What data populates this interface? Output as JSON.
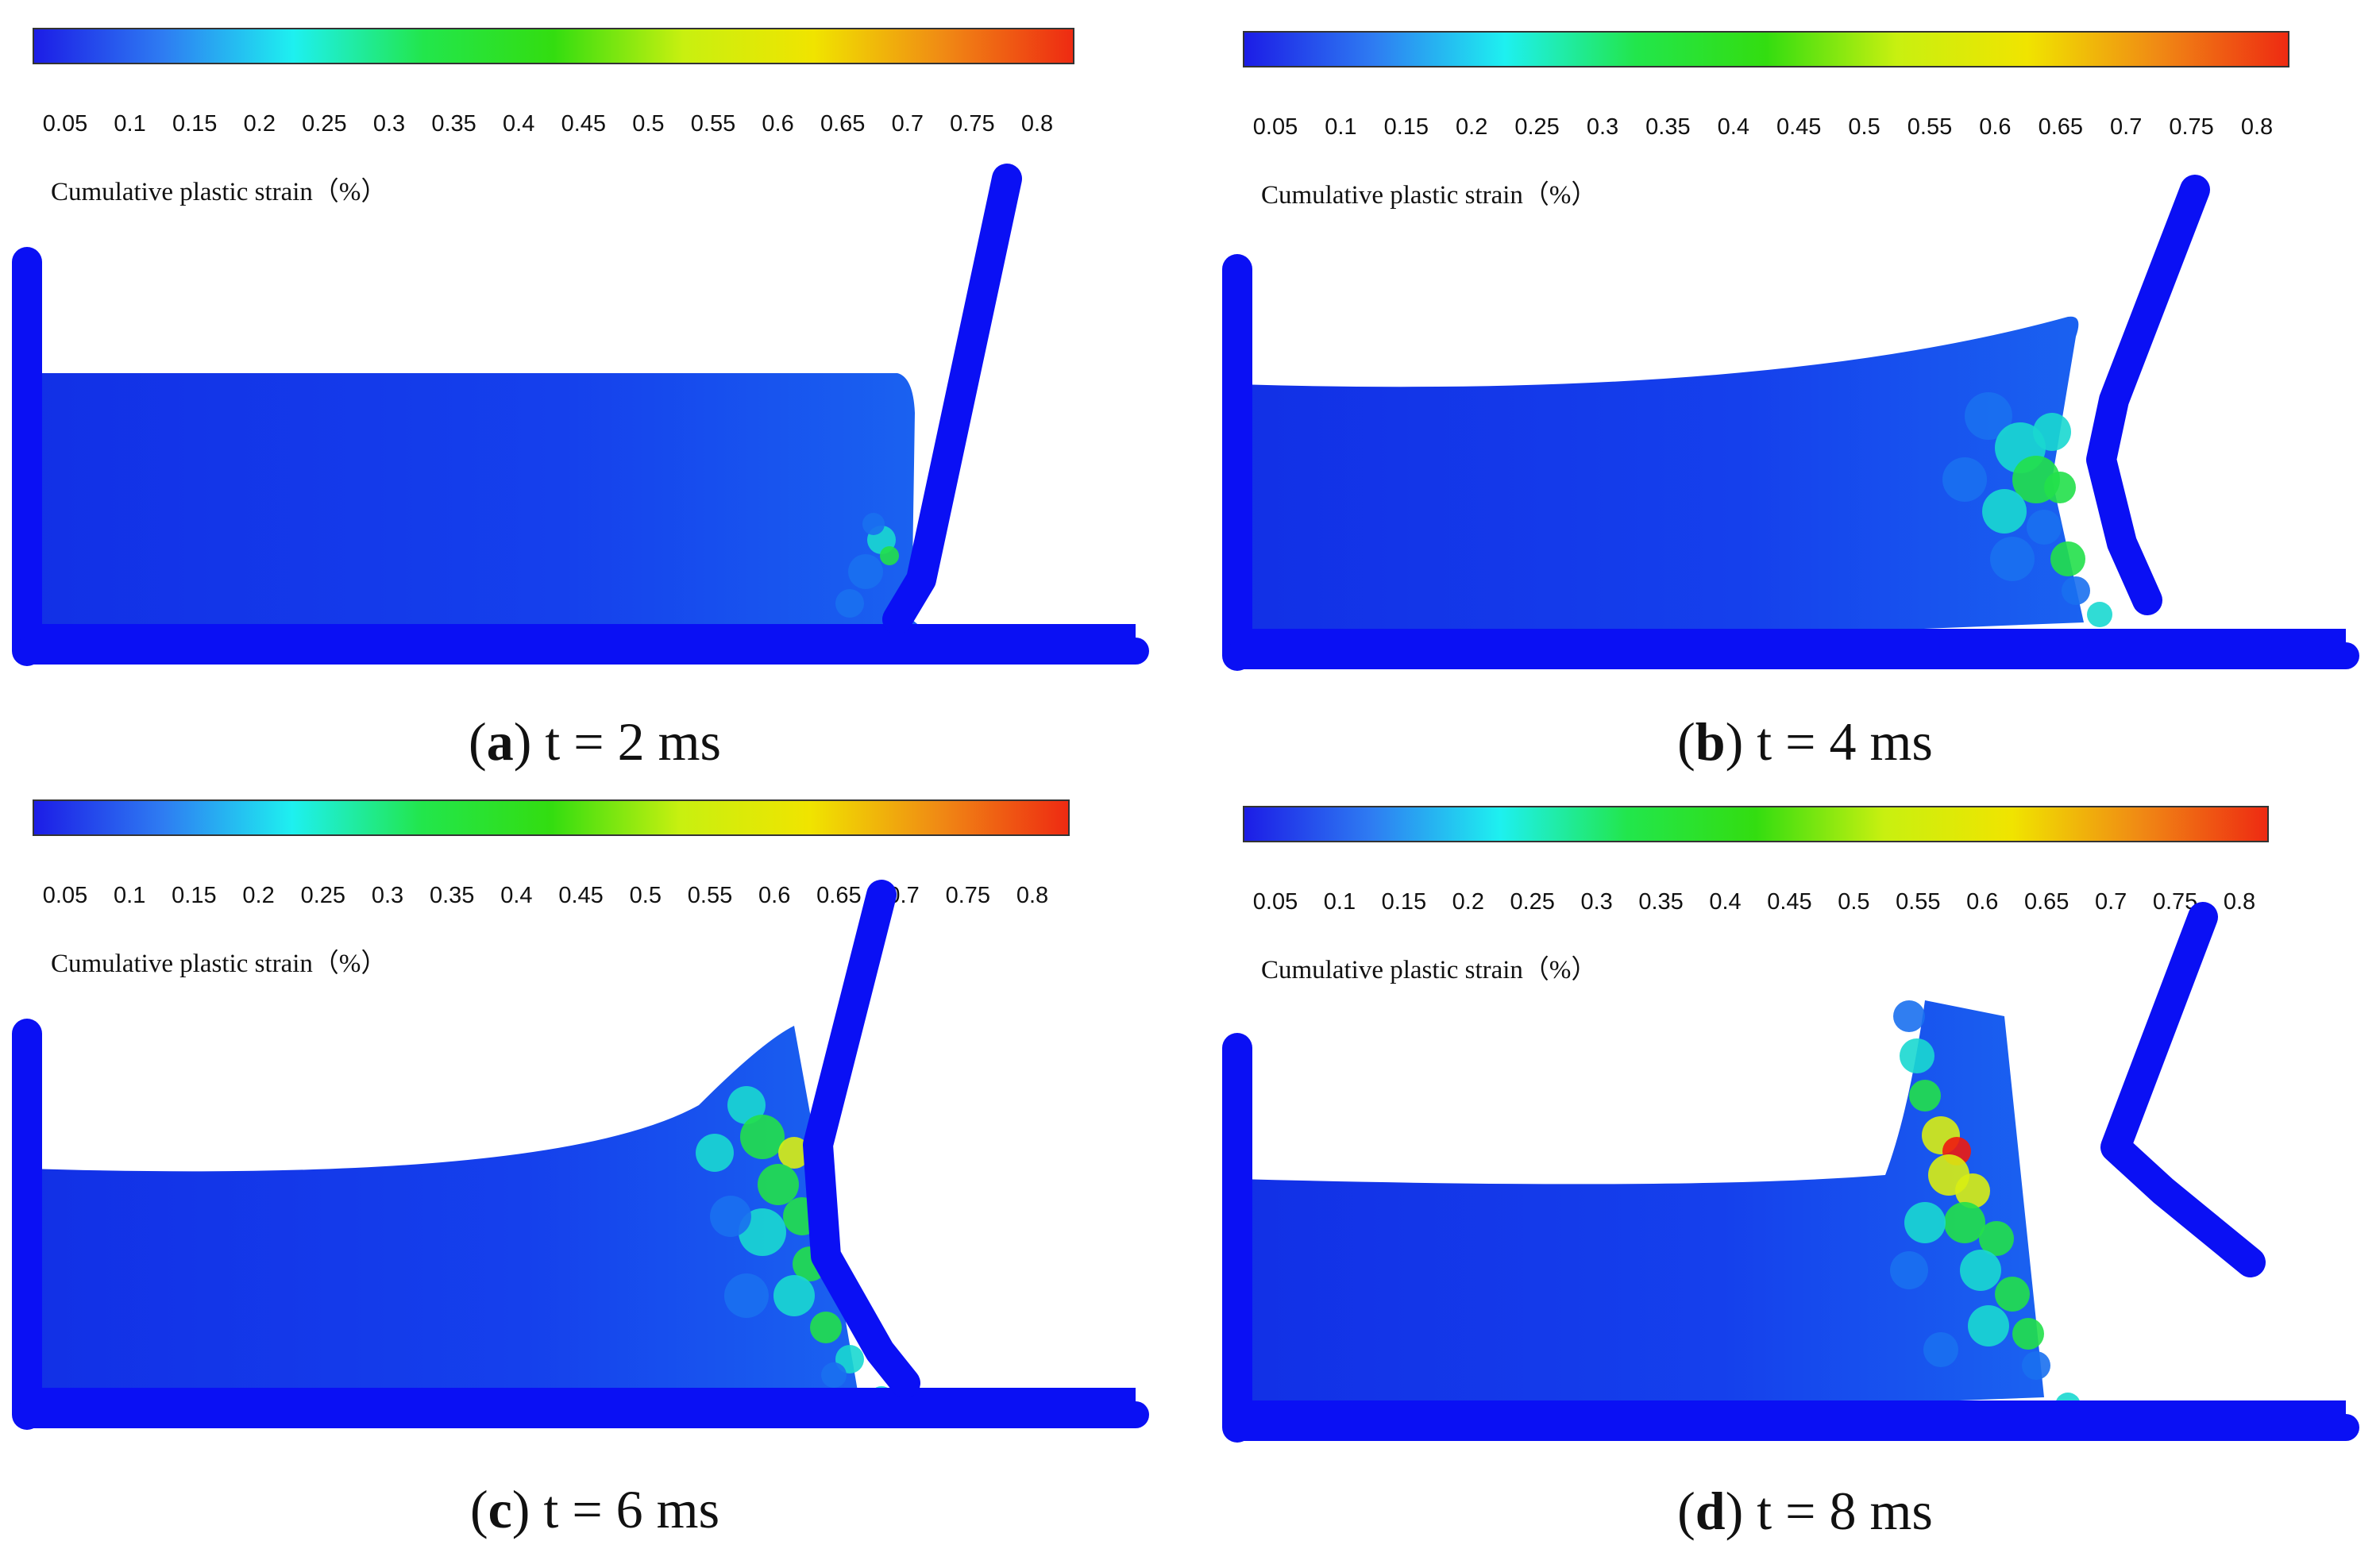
{
  "colorbar": {
    "ticks": [
      "0.05",
      "0.1",
      "0.15",
      "0.2",
      "0.25",
      "0.3",
      "0.35",
      "0.4",
      "0.45",
      "0.5",
      "0.55",
      "0.6",
      "0.65",
      "0.7",
      "0.75",
      "0.8"
    ],
    "label": "Cumulative plastic strain（%）",
    "colors": [
      "#1c1ce6",
      "#2e7cf2",
      "#1ef0f0",
      "#22e64c",
      "#33dd10",
      "#c8f010",
      "#f0e400",
      "#f08a14",
      "#ee2a12"
    ]
  },
  "colors": {
    "wall": "#0a10f4",
    "fluid": "#1536e8",
    "low": "#1a70f0",
    "mid": "#19d8d0",
    "green": "#22e04a",
    "yellow": "#d8ee12",
    "red": "#ee1a10"
  },
  "panels": [
    {
      "id": "a",
      "letter": "a",
      "time": "t = 2 ms"
    },
    {
      "id": "b",
      "letter": "b",
      "time": "t = 4 ms"
    },
    {
      "id": "c",
      "letter": "c",
      "time": "t = 6 ms"
    },
    {
      "id": "d",
      "letter": "d",
      "time": "t = 8 ms"
    }
  ]
}
